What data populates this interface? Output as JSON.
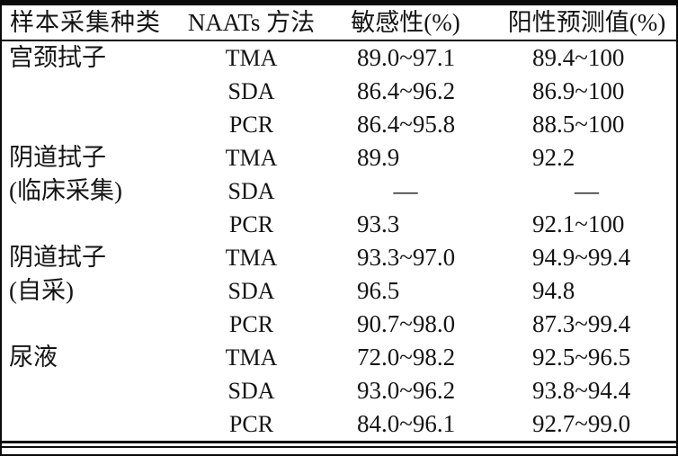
{
  "table": {
    "headers": [
      "样本采集种类",
      "NAATs 方法",
      "敏感性(%)",
      "阳性预测值(%)"
    ],
    "rows": [
      {
        "sample": "宫颈拭子",
        "method": "TMA",
        "sensitivity": "89.0~97.1",
        "ppv": "89.4~100"
      },
      {
        "sample": "",
        "method": "SDA",
        "sensitivity": "86.4~96.2",
        "ppv": "86.9~100"
      },
      {
        "sample": "",
        "method": "PCR",
        "sensitivity": "86.4~95.8",
        "ppv": "88.5~100"
      },
      {
        "sample": "阴道拭子",
        "method": "TMA",
        "sensitivity": "89.9",
        "ppv": "92.2"
      },
      {
        "sample": "(临床采集)",
        "method": "SDA",
        "sensitivity": "—",
        "ppv": "—"
      },
      {
        "sample": "",
        "method": "PCR",
        "sensitivity": "93.3",
        "ppv": "92.1~100"
      },
      {
        "sample": "阴道拭子",
        "method": "TMA",
        "sensitivity": "93.3~97.0",
        "ppv": "94.9~99.4"
      },
      {
        "sample": "(自采)",
        "method": "SDA",
        "sensitivity": "96.5",
        "ppv": "94.8"
      },
      {
        "sample": "",
        "method": "PCR",
        "sensitivity": "90.7~98.0",
        "ppv": "87.3~99.4"
      },
      {
        "sample": "尿液",
        "method": "TMA",
        "sensitivity": "72.0~98.2",
        "ppv": "92.5~96.5"
      },
      {
        "sample": "",
        "method": "SDA",
        "sensitivity": "93.0~96.2",
        "ppv": "93.8~94.4"
      },
      {
        "sample": "",
        "method": "PCR",
        "sensitivity": "84.0~96.1",
        "ppv": "92.7~99.0"
      }
    ]
  }
}
